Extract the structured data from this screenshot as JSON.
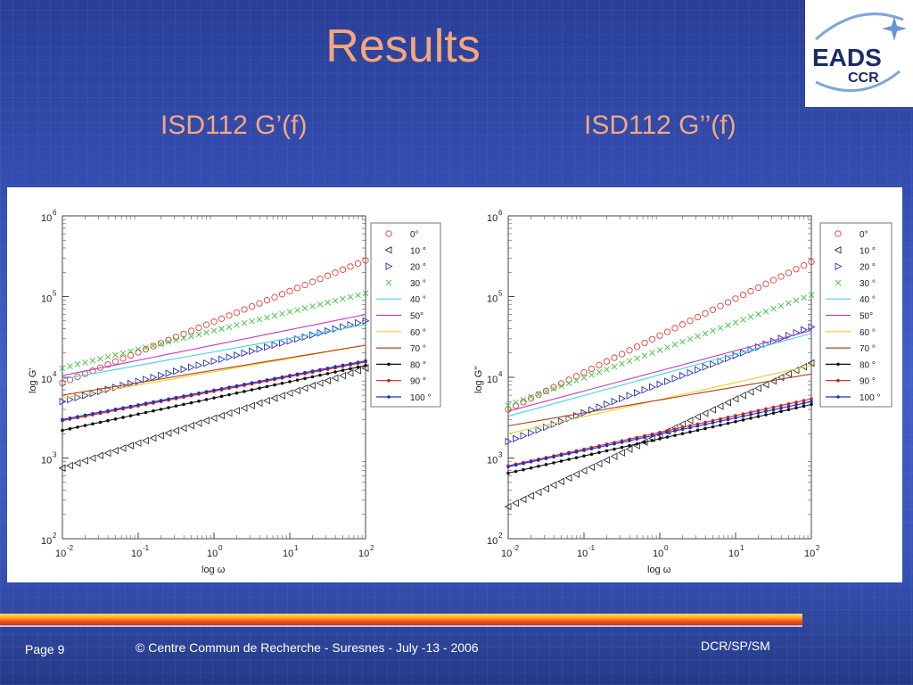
{
  "slide": {
    "title": "Results",
    "left_subtitle": "ISD112 G’(f)",
    "right_subtitle": "ISD112 G’’(f)"
  },
  "logo": {
    "brand": "EADS",
    "sub": "CCR"
  },
  "footer": {
    "page": "Page 9",
    "copyright": "© Centre Commun de Recherche  - Suresnes - July -13 - 2006",
    "dept": "DCR/SP/SM"
  },
  "colors": {
    "title": "#f4a77e",
    "bg_top": "#2a3f96",
    "bg_mid": "#4160c4"
  },
  "chart_data": [
    {
      "type": "scatter",
      "title": "",
      "xlabel": "log ω",
      "ylabel": "log G'",
      "xscale": "log",
      "yscale": "log",
      "xlim": [
        0.01,
        100
      ],
      "ylim": [
        100,
        1000000
      ],
      "x_ticks": [
        {
          "base": "10",
          "exp": "-2"
        },
        {
          "base": "10",
          "exp": "-1"
        },
        {
          "base": "10",
          "exp": "0"
        },
        {
          "base": "10",
          "exp": "1"
        },
        {
          "base": "10",
          "exp": "2"
        }
      ],
      "y_ticks": [
        {
          "base": "10",
          "exp": "2"
        },
        {
          "base": "10",
          "exp": "3"
        },
        {
          "base": "10",
          "exp": "4"
        },
        {
          "base": "10",
          "exp": "5"
        },
        {
          "base": "10",
          "exp": "6"
        }
      ],
      "legend_position": "right",
      "series": [
        {
          "name": "0°",
          "marker": "circle",
          "color": "#e0403a",
          "y_at_xmin": 8500,
          "y_at_xmax": 280000
        },
        {
          "name": "10 °",
          "marker": "triangle-left",
          "color": "#333333",
          "y_at_xmin": 750,
          "y_at_xmax": 13000
        },
        {
          "name": "20 °",
          "marker": "triangle-right",
          "color": "#2a33b0",
          "y_at_xmin": 5000,
          "y_at_xmax": 50000
        },
        {
          "name": "30 °",
          "marker": "x",
          "color": "#3cc23c",
          "y_at_xmin": 13000,
          "y_at_xmax": 110000
        },
        {
          "name": "40 °",
          "marker": "line",
          "color": "#3fd6e0",
          "y_at_xmin": 9500,
          "y_at_xmax": 45000
        },
        {
          "name": "50°",
          "marker": "line",
          "color": "#c23cc2",
          "y_at_xmin": 10500,
          "y_at_xmax": 60000
        },
        {
          "name": "60 °",
          "marker": "line",
          "color": "#e8d020",
          "y_at_xmin": 5500,
          "y_at_xmax": 25000
        },
        {
          "name": "70 °",
          "marker": "line",
          "color": "#b2401c",
          "y_at_xmin": 6000,
          "y_at_xmax": 25000
        },
        {
          "name": "80 °",
          "marker": "dot",
          "color": "#111111",
          "y_at_xmin": 2200,
          "y_at_xmax": 14000
        },
        {
          "name": "90 °",
          "marker": "dot",
          "color": "#d02020",
          "y_at_xmin": 2900,
          "y_at_xmax": 15500
        },
        {
          "name": "100 °",
          "marker": "dot",
          "color": "#2030c0",
          "y_at_xmin": 3000,
          "y_at_xmax": 16000
        }
      ]
    },
    {
      "type": "scatter",
      "title": "",
      "xlabel": "log ω",
      "ylabel": "log G''",
      "xscale": "log",
      "yscale": "log",
      "xlim": [
        0.01,
        100
      ],
      "ylim": [
        100,
        1000000
      ],
      "x_ticks": [
        {
          "base": "10",
          "exp": "-2"
        },
        {
          "base": "10",
          "exp": "-1"
        },
        {
          "base": "10",
          "exp": "0"
        },
        {
          "base": "10",
          "exp": "1"
        },
        {
          "base": "10",
          "exp": "2"
        }
      ],
      "y_ticks": [
        {
          "base": "10",
          "exp": "2"
        },
        {
          "base": "10",
          "exp": "3"
        },
        {
          "base": "10",
          "exp": "4"
        },
        {
          "base": "10",
          "exp": "5"
        },
        {
          "base": "10",
          "exp": "6"
        }
      ],
      "legend_position": "right",
      "series": [
        {
          "name": "0°",
          "marker": "circle",
          "color": "#e0403a",
          "y_at_xmin": 4000,
          "y_at_xmax": 270000
        },
        {
          "name": "10 °",
          "marker": "triangle-left",
          "color": "#333333",
          "y_at_xmin": 250,
          "y_at_xmax": 15000
        },
        {
          "name": "20 °",
          "marker": "triangle-right",
          "color": "#2a33b0",
          "y_at_xmin": 1600,
          "y_at_xmax": 42000
        },
        {
          "name": "30 °",
          "marker": "x",
          "color": "#3cc23c",
          "y_at_xmin": 4500,
          "y_at_xmax": 105000
        },
        {
          "name": "40 °",
          "marker": "line",
          "color": "#3fd6e0",
          "y_at_xmin": 3300,
          "y_at_xmax": 35000
        },
        {
          "name": "50°",
          "marker": "line",
          "color": "#c23cc2",
          "y_at_xmin": 3800,
          "y_at_xmax": 38000
        },
        {
          "name": "60 °",
          "marker": "line",
          "color": "#e8d020",
          "y_at_xmin": 2000,
          "y_at_xmax": 14000
        },
        {
          "name": "70 °",
          "marker": "line",
          "color": "#b2401c",
          "y_at_xmin": 2500,
          "y_at_xmax": 11000
        },
        {
          "name": "80 °",
          "marker": "dot",
          "color": "#111111",
          "y_at_xmin": 650,
          "y_at_xmax": 4600
        },
        {
          "name": "90 °",
          "marker": "dot",
          "color": "#d02020",
          "y_at_xmin": 800,
          "y_at_xmax": 5400
        },
        {
          "name": "100 °",
          "marker": "dot",
          "color": "#2030c0",
          "y_at_xmin": 780,
          "y_at_xmax": 5000
        }
      ]
    }
  ]
}
